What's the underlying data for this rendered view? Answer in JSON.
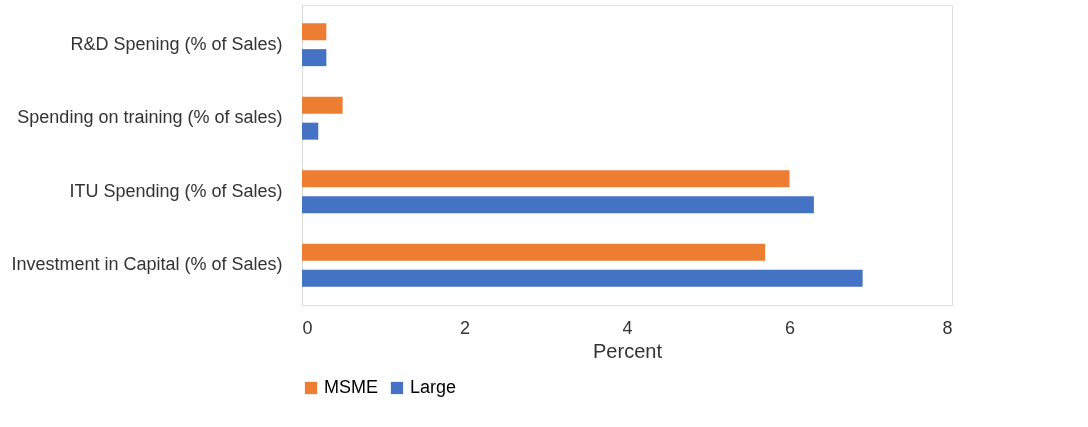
{
  "chart_data": {
    "type": "bar",
    "orientation": "horizontal",
    "xlabel": "Percent",
    "categories": [
      "R&D Spening (% of Sales)",
      "Spending on training (% of sales)",
      "ITU Spending (% of Sales)",
      "Investment in Capital  (% of Sales)"
    ],
    "series": [
      {
        "name": "MSME",
        "color": "#ed7d31",
        "values": [
          0.3,
          0.5,
          6.0,
          5.7
        ]
      },
      {
        "name": "Large",
        "color": "#4472c4",
        "values": [
          0.3,
          0.2,
          6.3,
          6.9
        ]
      }
    ],
    "xlim": [
      0,
      8
    ],
    "xticks": [
      0,
      2,
      4,
      6,
      8
    ],
    "grid": false,
    "legend": "bottom"
  }
}
